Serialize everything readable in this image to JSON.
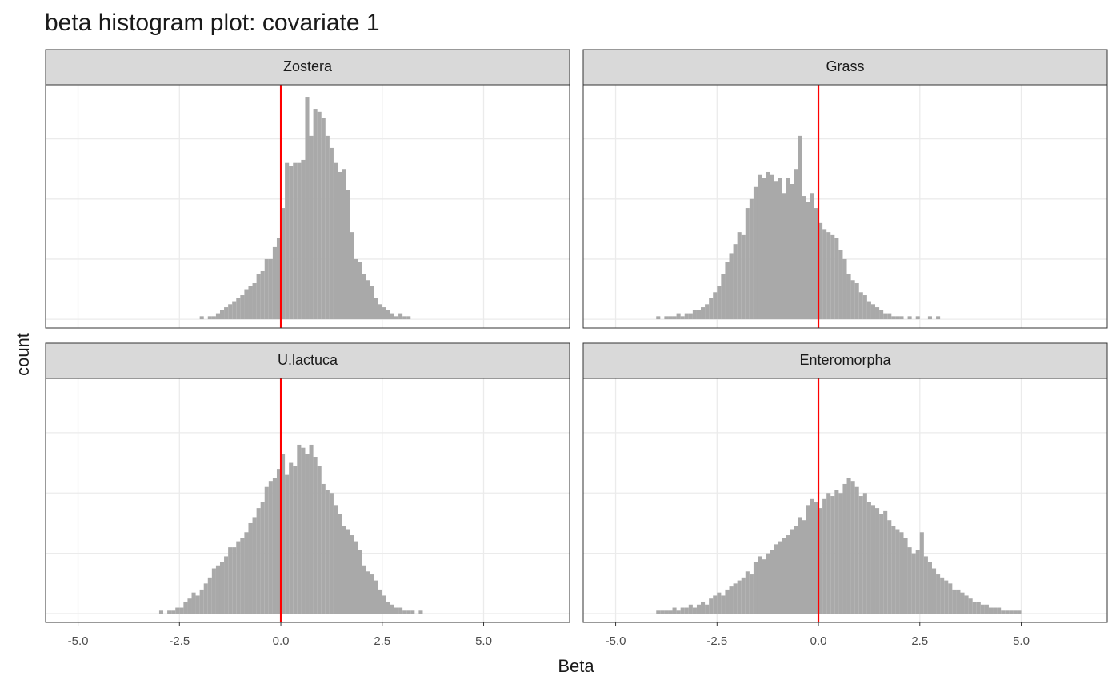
{
  "chart_data": {
    "type": "histogram",
    "title": "beta histogram plot: covariate 1",
    "xlabel": "Beta",
    "ylabel": "count",
    "xlim": [
      -5.8,
      7.12
    ],
    "xticks": [
      {
        "value": -5,
        "label": "-5.0"
      },
      {
        "value": -2.5,
        "label": "-2.5"
      },
      {
        "value": 0,
        "label": "0.0"
      },
      {
        "value": 2.5,
        "label": "2.5"
      },
      {
        "value": 5,
        "label": "5.0"
      }
    ],
    "ylim": [
      -2.9,
      78
    ],
    "yticks": [
      0,
      20,
      40,
      60
    ],
    "grid": true,
    "color": "#a9a9a9",
    "vline": 0,
    "vline_color": "#ff0000",
    "facets": [
      {
        "name": "Zostera",
        "bins": [
          -2.0,
          -1.9,
          -1.8,
          -1.7,
          -1.6,
          -1.5,
          -1.4,
          -1.3,
          -1.2,
          -1.1,
          -1.0,
          -0.9,
          -0.8,
          -0.7,
          -0.6,
          -0.5,
          -0.4,
          -0.3,
          -0.2,
          -0.1,
          0.0,
          0.1,
          0.2,
          0.3,
          0.4,
          0.5,
          0.6,
          0.7,
          0.8,
          0.9,
          1.0,
          1.1,
          1.2,
          1.3,
          1.4,
          1.5,
          1.6,
          1.7,
          1.8,
          1.9,
          2.0,
          2.1,
          2.2,
          2.3,
          2.4,
          2.5,
          2.6,
          2.7,
          2.8,
          2.9,
          3.0,
          3.1,
          3.2
        ],
        "counts": [
          1,
          0,
          1,
          1,
          2,
          3,
          4,
          5,
          6,
          7,
          8,
          10,
          11,
          12,
          15,
          16,
          20,
          20,
          24,
          27,
          37,
          52,
          51,
          52,
          52,
          53,
          74,
          61,
          70,
          69,
          67,
          61,
          57,
          52,
          49,
          50,
          43,
          29,
          20,
          19,
          15,
          13,
          11,
          7,
          5,
          4,
          3,
          2,
          1,
          2,
          1,
          1
        ]
      },
      {
        "name": "Grass",
        "bins": [
          -4.0,
          -3.9,
          -3.8,
          -3.7,
          -3.6,
          -3.5,
          -3.4,
          -3.3,
          -3.2,
          -3.1,
          -3.0,
          -2.9,
          -2.8,
          -2.7,
          -2.6,
          -2.5,
          -2.4,
          -2.3,
          -2.2,
          -2.1,
          -2.0,
          -1.9,
          -1.8,
          -1.7,
          -1.6,
          -1.5,
          -1.4,
          -1.3,
          -1.2,
          -1.1,
          -1.0,
          -0.9,
          -0.8,
          -0.7,
          -0.6,
          -0.5,
          -0.4,
          -0.3,
          -0.2,
          -0.1,
          0.0,
          0.1,
          0.2,
          0.3,
          0.4,
          0.5,
          0.6,
          0.7,
          0.8,
          0.9,
          1.0,
          1.1,
          1.2,
          1.3,
          1.4,
          1.5,
          1.6,
          1.7,
          1.8,
          1.9,
          2.0,
          2.1,
          2.2,
          2.3,
          2.4,
          2.5,
          2.6,
          2.7,
          2.8,
          2.9,
          3.0
        ],
        "counts": [
          1,
          0,
          1,
          1,
          1,
          2,
          1,
          2,
          2,
          3,
          3,
          4,
          5,
          7,
          9,
          11,
          15,
          19,
          22,
          25,
          29,
          28,
          37,
          40,
          44,
          48,
          47,
          49,
          48,
          46,
          47,
          42,
          47,
          45,
          50,
          61,
          41,
          39,
          42,
          37,
          32,
          30,
          29,
          28,
          27,
          23,
          20,
          15,
          13,
          12,
          9,
          8,
          6,
          5,
          4,
          3,
          2,
          2,
          1,
          1,
          1,
          0,
          1,
          0,
          1,
          0,
          0,
          1,
          0,
          1
        ]
      },
      {
        "name": "U.lactuca",
        "bins": [
          -3.0,
          -2.9,
          -2.8,
          -2.7,
          -2.6,
          -2.5,
          -2.4,
          -2.3,
          -2.2,
          -2.1,
          -2.0,
          -1.9,
          -1.8,
          -1.7,
          -1.6,
          -1.5,
          -1.4,
          -1.3,
          -1.2,
          -1.1,
          -1.0,
          -0.9,
          -0.8,
          -0.7,
          -0.6,
          -0.5,
          -0.4,
          -0.3,
          -0.2,
          -0.1,
          0.0,
          0.1,
          0.2,
          0.3,
          0.4,
          0.5,
          0.6,
          0.7,
          0.8,
          0.9,
          1.0,
          1.1,
          1.2,
          1.3,
          1.4,
          1.5,
          1.6,
          1.7,
          1.8,
          1.9,
          2.0,
          2.1,
          2.2,
          2.3,
          2.4,
          2.5,
          2.6,
          2.7,
          2.8,
          2.9,
          3.0,
          3.1,
          3.2,
          3.3,
          3.4,
          3.5,
          3.6
        ],
        "counts": [
          1,
          0,
          1,
          1,
          2,
          2,
          4,
          5,
          7,
          6,
          8,
          10,
          12,
          15,
          16,
          17,
          19,
          22,
          22,
          24,
          25,
          27,
          30,
          32,
          35,
          37,
          42,
          44,
          45,
          48,
          53,
          46,
          50,
          49,
          56,
          55,
          53,
          56,
          52,
          49,
          43,
          41,
          40,
          36,
          33,
          29,
          28,
          26,
          24,
          21,
          16,
          14,
          13,
          11,
          8,
          6,
          4,
          3,
          2,
          2,
          1,
          1,
          1,
          0,
          1,
          0
        ]
      },
      {
        "name": "Enteromorpha",
        "bins": [
          -4.0,
          -3.9,
          -3.8,
          -3.7,
          -3.6,
          -3.5,
          -3.4,
          -3.3,
          -3.2,
          -3.1,
          -3.0,
          -2.9,
          -2.8,
          -2.7,
          -2.6,
          -2.5,
          -2.4,
          -2.3,
          -2.2,
          -2.1,
          -2.0,
          -1.9,
          -1.8,
          -1.7,
          -1.6,
          -1.5,
          -1.4,
          -1.3,
          -1.2,
          -1.1,
          -1.0,
          -0.9,
          -0.8,
          -0.7,
          -0.6,
          -0.5,
          -0.4,
          -0.3,
          -0.2,
          -0.1,
          0.0,
          0.1,
          0.2,
          0.3,
          0.4,
          0.5,
          0.6,
          0.7,
          0.8,
          0.9,
          1.0,
          1.1,
          1.2,
          1.3,
          1.4,
          1.5,
          1.6,
          1.7,
          1.8,
          1.9,
          2.0,
          2.1,
          2.2,
          2.3,
          2.4,
          2.5,
          2.6,
          2.7,
          2.8,
          2.9,
          3.0,
          3.1,
          3.2,
          3.3,
          3.4,
          3.5,
          3.6,
          3.7,
          3.8,
          3.9,
          4.0,
          4.1,
          4.2,
          4.3,
          4.4,
          4.5,
          4.6,
          4.7,
          4.8,
          4.9,
          5.0
        ],
        "counts": [
          1,
          1,
          1,
          1,
          2,
          1,
          2,
          2,
          3,
          2,
          3,
          4,
          3,
          5,
          6,
          7,
          6,
          8,
          9,
          10,
          11,
          12,
          14,
          13,
          17,
          19,
          18,
          20,
          21,
          23,
          24,
          25,
          26,
          28,
          29,
          32,
          31,
          36,
          38,
          37,
          35,
          38,
          40,
          39,
          41,
          40,
          43,
          45,
          44,
          42,
          39,
          40,
          37,
          36,
          35,
          33,
          34,
          31,
          29,
          28,
          27,
          25,
          22,
          20,
          21,
          27,
          19,
          17,
          15,
          13,
          12,
          11,
          10,
          8,
          8,
          7,
          6,
          5,
          4,
          4,
          3,
          3,
          2,
          2,
          2,
          1,
          1,
          1,
          1,
          1
        ]
      }
    ]
  }
}
